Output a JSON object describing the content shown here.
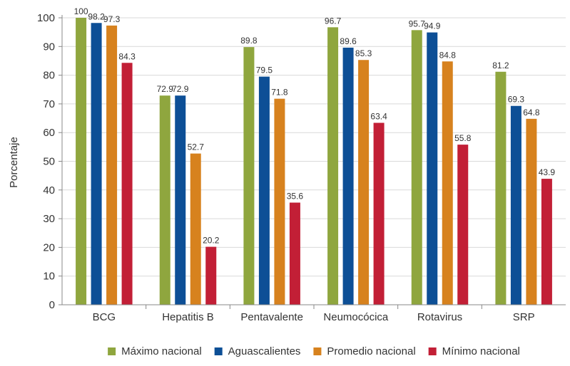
{
  "chart_data": {
    "type": "bar",
    "title": "",
    "xlabel": "",
    "ylabel": "Porcentaje",
    "ylim": [
      0,
      100
    ],
    "yticks": [
      0,
      10,
      20,
      30,
      40,
      50,
      60,
      70,
      80,
      90,
      100
    ],
    "grid": "horizontal",
    "legend_position": "bottom",
    "categories": [
      "BCG",
      "Hepatitis B",
      "Pentavalente",
      "Neumocócica",
      "Rotavirus",
      "SRP"
    ],
    "series": [
      {
        "name": "Máximo nacional",
        "color": "#8fa63e",
        "values": [
          100,
          72.9,
          89.8,
          96.7,
          95.7,
          81.2
        ],
        "labels": [
          "100",
          "72.9",
          "89.8",
          "96.7",
          "95.7",
          "81.2"
        ]
      },
      {
        "name": "Aguascalientes",
        "color": "#0d4f96",
        "values": [
          98.2,
          72.9,
          79.5,
          89.6,
          94.9,
          69.3
        ],
        "labels": [
          "98.2",
          "72.9",
          "79.5",
          "89.6",
          "94.9",
          "69.3"
        ]
      },
      {
        "name": "Promedio nacional",
        "color": "#d7821e",
        "values": [
          97.3,
          52.7,
          71.8,
          85.3,
          84.8,
          64.8
        ],
        "labels": [
          "97.3",
          "52.7",
          "71.8",
          "85.3",
          "84.8",
          "64.8"
        ]
      },
      {
        "name": "Mínimo nacional",
        "color": "#c21f36",
        "values": [
          84.3,
          20.2,
          35.6,
          63.4,
          55.8,
          43.9
        ],
        "labels": [
          "84.3",
          "20.2",
          "35.6",
          "63.4",
          "55.8",
          "43.9"
        ]
      }
    ]
  }
}
